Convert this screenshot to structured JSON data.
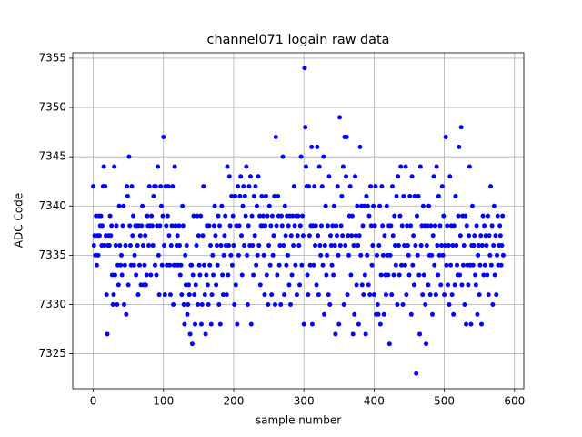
{
  "chart_data": {
    "type": "scatter",
    "title": "channel071 logain raw data",
    "x_label": "sample number",
    "y_label": "ADC Code",
    "color": "#0000ff",
    "grid": true,
    "xlim": [
      -29.2,
      613.2
    ],
    "ylim": [
      7321.45,
      7355.55
    ],
    "xticks": [
      0,
      100,
      200,
      300,
      400,
      500,
      600
    ],
    "yticks": [
      7325,
      7330,
      7335,
      7340,
      7345,
      7350,
      7355
    ],
    "x": [
      0,
      1,
      2,
      3,
      4,
      5,
      6,
      7,
      8,
      9,
      10,
      11,
      12,
      13,
      14,
      15,
      16,
      17,
      18,
      19,
      20,
      21,
      22,
      23,
      24,
      25,
      26,
      27,
      28,
      29,
      30,
      31,
      32,
      33,
      34,
      35,
      36,
      37,
      38,
      39,
      40,
      41,
      42,
      43,
      44,
      45,
      46,
      47,
      48,
      49,
      50,
      51,
      52,
      53,
      54,
      55,
      56,
      57,
      58,
      59,
      60,
      61,
      62,
      63,
      64,
      65,
      66,
      67,
      68,
      69,
      70,
      71,
      72,
      73,
      74,
      75,
      76,
      77,
      78,
      79,
      80,
      81,
      82,
      83,
      84,
      85,
      86,
      87,
      88,
      89,
      90,
      91,
      92,
      93,
      94,
      95,
      96,
      97,
      98,
      99,
      100,
      101,
      102,
      103,
      104,
      105,
      106,
      107,
      108,
      109,
      110,
      111,
      112,
      113,
      114,
      115,
      116,
      117,
      118,
      119,
      120,
      121,
      122,
      123,
      124,
      125,
      126,
      127,
      128,
      129,
      130,
      131,
      132,
      133,
      134,
      135,
      136,
      137,
      138,
      139,
      140,
      141,
      142,
      143,
      144,
      145,
      146,
      147,
      148,
      149,
      150,
      151,
      152,
      153,
      154,
      155,
      156,
      157,
      158,
      159,
      160,
      161,
      162,
      163,
      164,
      165,
      166,
      167,
      168,
      169,
      170,
      171,
      172,
      173,
      174,
      175,
      176,
      177,
      178,
      179,
      180,
      181,
      182,
      183,
      184,
      185,
      186,
      187,
      188,
      189,
      190,
      191,
      192,
      193,
      194,
      195,
      196,
      197,
      198,
      199,
      200,
      201,
      202,
      203,
      204,
      205,
      206,
      207,
      208,
      209,
      210,
      211,
      212,
      213,
      214,
      215,
      216,
      217,
      218,
      219,
      220,
      221,
      222,
      223,
      224,
      225,
      226,
      227,
      228,
      229,
      230,
      231,
      232,
      233,
      234,
      235,
      236,
      237,
      238,
      239,
      240,
      241,
      242,
      243,
      244,
      245,
      246,
      247,
      248,
      249,
      250,
      251,
      252,
      253,
      254,
      255,
      256,
      257,
      258,
      259,
      260,
      261,
      262,
      263,
      264,
      265,
      266,
      267,
      268,
      269,
      270,
      271,
      272,
      273,
      274,
      275,
      276,
      277,
      278,
      279,
      280,
      281,
      282,
      283,
      284,
      285,
      286,
      287,
      288,
      289,
      290,
      291,
      292,
      293,
      294,
      295,
      296,
      297,
      298,
      299,
      300,
      301,
      302,
      303,
      304,
      305,
      306,
      307,
      308,
      309,
      310,
      311,
      312,
      313,
      314,
      315,
      316,
      317,
      318,
      319,
      320,
      321,
      322,
      323,
      324,
      325,
      326,
      327,
      328,
      329,
      330,
      331,
      332,
      333,
      334,
      335,
      336,
      337,
      338,
      339,
      340,
      341,
      342,
      343,
      344,
      345,
      346,
      347,
      348,
      349,
      350,
      351,
      352,
      353,
      354,
      355,
      356,
      357,
      358,
      359,
      360,
      361,
      362,
      363,
      364,
      365,
      366,
      367,
      368,
      369,
      370,
      371,
      372,
      373,
      374,
      375,
      376,
      377,
      378,
      379,
      380,
      381,
      382,
      383,
      384,
      385,
      386,
      387,
      388,
      389,
      390,
      391,
      392,
      393,
      394,
      395,
      396,
      397,
      398,
      399,
      400,
      401,
      402,
      403,
      404,
      405,
      406,
      407,
      408,
      409,
      410,
      411,
      412,
      413,
      414,
      415,
      416,
      417,
      418,
      419,
      420,
      421,
      422,
      423,
      424,
      425,
      426,
      427,
      428,
      429,
      430,
      431,
      432,
      433,
      434,
      435,
      436,
      437,
      438,
      439,
      440,
      441,
      442,
      443,
      444,
      445,
      446,
      447,
      448,
      449,
      450,
      451,
      452,
      453,
      454,
      455,
      456,
      457,
      458,
      459,
      460,
      461,
      462,
      463,
      464,
      465,
      466,
      467,
      468,
      469,
      470,
      471,
      472,
      473,
      474,
      475,
      476,
      477,
      478,
      479,
      480,
      481,
      482,
      483,
      484,
      485,
      486,
      487,
      488,
      489,
      490,
      491,
      492,
      493,
      494,
      495,
      496,
      497,
      498,
      499,
      500,
      501,
      502,
      503,
      504,
      505,
      506,
      507,
      508,
      509,
      510,
      511,
      512,
      513,
      514,
      515,
      516,
      517,
      518,
      519,
      520,
      521,
      522,
      523,
      524,
      525,
      526,
      527,
      528,
      529,
      530,
      531,
      532,
      533,
      534,
      535,
      536,
      537,
      538,
      539,
      540,
      541,
      542,
      543,
      544,
      545,
      546,
      547,
      548,
      549,
      550,
      551,
      552,
      553,
      554,
      555,
      556,
      557,
      558,
      559,
      560,
      561,
      562,
      563,
      564,
      565,
      566,
      567,
      568,
      569,
      570,
      571,
      572,
      573,
      574,
      575,
      576,
      577,
      578,
      579,
      580,
      581,
      582,
      583,
      584
    ],
    "values": [
      7342,
      7336,
      7337,
      7335,
      7339,
      7334,
      7337,
      7335,
      7339,
      7337,
      7338,
      7339,
      7336,
      7338,
      7342,
      7344,
      7336,
      7342,
      7337,
      7331,
      7327,
      7336,
      7337,
      7336,
      7339,
      7337,
      7338,
      7333,
      7330,
      7331,
      7344,
      7333,
      7336,
      7338,
      7330,
      7334,
      7332,
      7340,
      7336,
      7334,
      7335,
      7333,
      7338,
      7340,
      7330,
      7334,
      7336,
      7329,
      7342,
      7341,
      7332,
      7345,
      7338,
      7336,
      7334,
      7342,
      7337,
      7339,
      7334,
      7335,
      7338,
      7333,
      7338,
      7336,
      7331,
      7338,
      7334,
      7337,
      7332,
      7338,
      7340,
      7336,
      7332,
      7334,
      7337,
      7332,
      7333,
      7339,
      7338,
      7336,
      7342,
      7338,
      7333,
      7339,
      7338,
      7336,
      7341,
      7342,
      7334,
      7342,
      7333,
      7338,
      7344,
      7335,
      7331,
      7338,
      7342,
      7340,
      7334,
      7339,
      7347,
      7336,
      7331,
      7342,
      7338,
      7334,
      7339,
      7342,
      7337,
      7334,
      7331,
      7336,
      7338,
      7342,
      7330,
      7334,
      7344,
      7338,
      7334,
      7336,
      7337,
      7334,
      7338,
      7336,
      7333,
      7334,
      7331,
      7340,
      7338,
      7330,
      7328,
      7335,
      7332,
      7336,
      7329,
      7330,
      7332,
      7331,
      7327,
      7334,
      7334,
      7326,
      7333,
      7339,
      7331,
      7328,
      7332,
      7336,
      7339,
      7330,
      7337,
      7334,
      7333,
      7339,
      7328,
      7330,
      7337,
      7342,
      7334,
      7331,
      7327,
      7333,
      7338,
      7332,
      7330,
      7338,
      7334,
      7336,
      7328,
      7331,
      7335,
      7333,
      7338,
      7340,
      7337,
      7332,
      7336,
      7334,
      7339,
      7330,
      7338,
      7328,
      7336,
      7340,
      7333,
      7331,
      7335,
      7337,
      7339,
      7336,
      7331,
      7344,
      7333,
      7336,
      7343,
      7338,
      7335,
      7341,
      7334,
      7339,
      7336,
      7330,
      7341,
      7332,
      7338,
      7328,
      7342,
      7335,
      7338,
      7341,
      7343,
      7337,
      7333,
      7340,
      7342,
      7336,
      7341,
      7339,
      7344,
      7335,
      7330,
      7338,
      7342,
      7336,
      7343,
      7328,
      7339,
      7336,
      7333,
      7341,
      7337,
      7342,
      7334,
      7340,
      7335,
      7343,
      7336,
      7339,
      7332,
      7338,
      7341,
      7338,
      7339,
      7335,
      7331,
      7338,
      7341,
      7333,
      7339,
      7330,
      7336,
      7340,
      7334,
      7338,
      7331,
      7339,
      7335,
      7337,
      7341,
      7330,
      7347,
      7338,
      7333,
      7341,
      7339,
      7334,
      7336,
      7330,
      7339,
      7338,
      7345,
      7336,
      7331,
      7340,
      7337,
      7334,
      7339,
      7335,
      7338,
      7332,
      7339,
      7330,
      7337,
      7333,
      7339,
      7336,
      7342,
      7338,
      7334,
      7339,
      7331,
      7337,
      7339,
      7336,
      7332,
      7338,
      7345,
      7334,
      7339,
      7337,
      7328,
      7354,
      7348,
      7344,
      7342,
      7333,
      7331,
      7342,
      7337,
      7334,
      7338,
      7346,
      7328,
      7338,
      7334,
      7342,
      7336,
      7338,
      7332,
      7346,
      7337,
      7331,
      7344,
      7336,
      7335,
      7338,
      7342,
      7334,
      7345,
      7329,
      7336,
      7340,
      7333,
      7335,
      7338,
      7331,
      7343,
      7330,
      7337,
      7336,
      7334,
      7338,
      7333,
      7340,
      7336,
      7327,
      7338,
      7337,
      7342,
      7335,
      7328,
      7349,
      7336,
      7338,
      7341,
      7337,
      7344,
      7330,
      7347,
      7336,
      7343,
      7347,
      7331,
      7337,
      7335,
      7339,
      7342,
      7333,
      7337,
      7339,
      7327,
      7336,
      7329,
      7343,
      7337,
      7332,
      7340,
      7336,
      7328,
      7337,
      7346,
      7335,
      7340,
      7332,
      7338,
      7331,
      7340,
      7333,
      7327,
      7341,
      7335,
      7340,
      7332,
      7339,
      7331,
      7342,
      7338,
      7334,
      7336,
      7340,
      7331,
      7338,
      7342,
      7329,
      7335,
      7330,
      7329,
      7336,
      7340,
      7328,
      7333,
      7342,
      7338,
      7335,
      7329,
      7337,
      7333,
      7331,
      7340,
      7335,
      7333,
      7338,
      7326,
      7335,
      7338,
      7331,
      7342,
      7337,
      7333,
      7339,
      7336,
      7334,
      7341,
      7330,
      7343,
      7336,
      7333,
      7339,
      7344,
      7334,
      7338,
      7330,
      7341,
      7336,
      7334,
      7344,
      7331,
      7338,
      7336,
      7335,
      7333,
      7341,
      7338,
      7329,
      7343,
      7334,
      7337,
      7332,
      7341,
      7336,
      7323,
      7339,
      7335,
      7341,
      7333,
      7327,
      7344,
      7336,
      7338,
      7331,
      7340,
      7333,
      7338,
      7330,
      7326,
      7336,
      7338,
      7332,
      7340,
      7335,
      7331,
      7338,
      7335,
      7329,
      7337,
      7343,
      7334,
      7338,
      7331,
      7344,
      7336,
      7333,
      7341,
      7335,
      7338,
      7332,
      7336,
      7342,
      7335,
      7339,
      7331,
      7336,
      7347,
      7334,
      7338,
      7332,
      7336,
      7330,
      7343,
      7334,
      7338,
      7331,
      7336,
      7329,
      7338,
      7332,
      7341,
      7336,
      7334,
      7333,
      7339,
      7346,
      7333,
      7337,
      7348,
      7332,
      7339,
      7334,
      7336,
      7330,
      7339,
      7328,
      7338,
      7334,
      7332,
      7337,
      7344,
      7334,
      7328,
      7336,
      7340,
      7334,
      7336,
      7337,
      7333,
      7332,
      7338,
      7329,
      7335,
      7336,
      7331,
      7334,
      7337,
      7328,
      7336,
      7339,
      7333,
      7338,
      7334,
      7337,
      7336,
      7333,
      7339,
      7331,
      7337,
      7335,
      7342,
      7334,
      7338,
      7330,
      7336,
      7340,
      7333,
      7337,
      7331,
      7335,
      7339,
      7334,
      7336,
      7338,
      7337,
      7334,
      7336,
      7339,
      7335
    ]
  }
}
